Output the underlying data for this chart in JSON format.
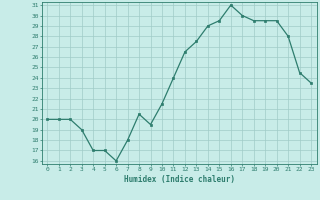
{
  "x": [
    0,
    1,
    2,
    3,
    4,
    5,
    6,
    7,
    8,
    9,
    10,
    11,
    12,
    13,
    14,
    15,
    16,
    17,
    18,
    19,
    20,
    21,
    22,
    23
  ],
  "y": [
    20,
    20,
    20,
    19,
    17,
    17,
    16,
    18,
    20.5,
    19.5,
    21.5,
    24,
    26.5,
    27.5,
    29,
    29.5,
    31,
    30,
    29.5,
    29.5,
    29.5,
    28,
    24.5,
    23.5
  ],
  "line_color": "#2e7d6e",
  "marker_color": "#2e7d6e",
  "bg_color": "#c8ece8",
  "grid_color": "#a0ccc8",
  "tick_label_color": "#2e7d6e",
  "xlabel": "Humidex (Indice chaleur)",
  "ylim": [
    16,
    31
  ],
  "xlim": [
    -0.5,
    23.5
  ],
  "yticks": [
    16,
    17,
    18,
    19,
    20,
    21,
    22,
    23,
    24,
    25,
    26,
    27,
    28,
    29,
    30,
    31
  ],
  "xticks": [
    0,
    1,
    2,
    3,
    4,
    5,
    6,
    7,
    8,
    9,
    10,
    11,
    12,
    13,
    14,
    15,
    16,
    17,
    18,
    19,
    20,
    21,
    22,
    23
  ]
}
